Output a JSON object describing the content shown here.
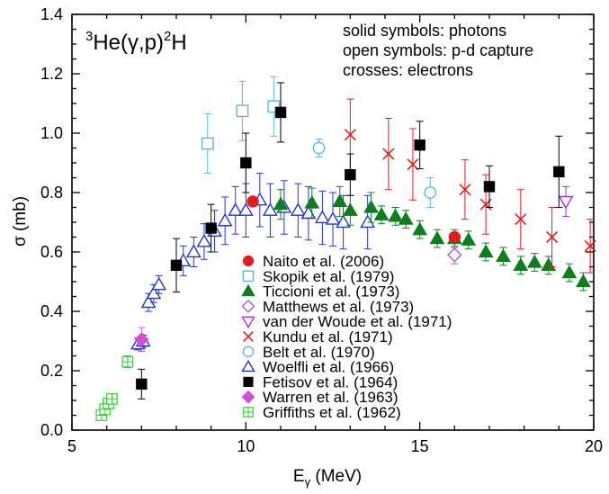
{
  "chart_data": {
    "type": "scatter",
    "title": {
      "pre": "3",
      "main1": "He(γ,p)",
      "sup2": "2",
      "main2": "H"
    },
    "xlabel": {
      "base": "E",
      "sub": "γ",
      "rest": " (MeV)"
    },
    "ylabel": "σ (mb)",
    "xlim": [
      5,
      20
    ],
    "ylim": [
      0.0,
      1.4
    ],
    "xticks": [
      5,
      10,
      15,
      20
    ],
    "xtick_labels": [
      "5",
      "10",
      "15",
      "20"
    ],
    "yticks": [
      0.0,
      0.2,
      0.4,
      0.6,
      0.8,
      1.0,
      1.2,
      1.4
    ],
    "ytick_labels": [
      "0.0",
      "0.2",
      "0.4",
      "0.6",
      "0.8",
      "1.0",
      "1.2",
      "1.4"
    ],
    "annotations": [
      "solid symbols: photons",
      "open symbols: p-d capture",
      "crosses: electrons"
    ],
    "legend_position": "center-bottom",
    "series": [
      {
        "name": "Naito et al. (2006)",
        "marker": "circle-filled",
        "color": "#e41a1c",
        "points": [
          [
            10.2,
            0.77,
            0
          ],
          [
            16.0,
            0.65,
            0
          ]
        ]
      },
      {
        "name": "Skopik et al. (1979)",
        "marker": "square-open",
        "color": "#5bb6e6",
        "points": [
          [
            8.9,
            0.965,
            0.1
          ],
          [
            9.9,
            1.075,
            0.1
          ],
          [
            10.8,
            1.09,
            0.1
          ]
        ]
      },
      {
        "name": "Ticcioni et al. (1973)",
        "marker": "triangle-filled",
        "color": "#0e7d1c",
        "points": [
          [
            11.0,
            0.76,
            0.05
          ],
          [
            11.9,
            0.765,
            0.05
          ],
          [
            12.7,
            0.77,
            0.05
          ],
          [
            13.0,
            0.74,
            0.05
          ],
          [
            13.6,
            0.75,
            0.05
          ],
          [
            13.9,
            0.725,
            0.03
          ],
          [
            14.3,
            0.72,
            0.03
          ],
          [
            14.6,
            0.71,
            0.03
          ],
          [
            15.0,
            0.675,
            0.03
          ],
          [
            15.5,
            0.645,
            0.03
          ],
          [
            16.0,
            0.645,
            0.03
          ],
          [
            16.4,
            0.64,
            0.03
          ],
          [
            16.9,
            0.6,
            0.03
          ],
          [
            17.4,
            0.585,
            0.03
          ],
          [
            17.9,
            0.555,
            0.03
          ],
          [
            18.3,
            0.565,
            0.03
          ],
          [
            18.7,
            0.555,
            0.03
          ],
          [
            19.3,
            0.53,
            0.03
          ],
          [
            19.7,
            0.5,
            0.03
          ]
        ]
      },
      {
        "name": "Matthews et al. (1973)",
        "marker": "diamond-open",
        "color": "#b05ccc",
        "points": [
          [
            16.0,
            0.59,
            0.03
          ]
        ]
      },
      {
        "name": "van der Woude et al. (1971)",
        "marker": "triangle-down-open",
        "color": "#9b32d0",
        "points": [
          [
            19.2,
            0.77,
            0.05
          ]
        ]
      },
      {
        "name": "Kundu et al. (1971)",
        "marker": "cross",
        "color": "#e41a1c",
        "points": [
          [
            13.0,
            0.995,
            0.12
          ],
          [
            14.1,
            0.93,
            0.12
          ],
          [
            14.8,
            0.895,
            0.12
          ],
          [
            16.3,
            0.81,
            0.1
          ],
          [
            16.9,
            0.76,
            0.1
          ],
          [
            17.9,
            0.71,
            0.1
          ],
          [
            18.8,
            0.65,
            0.1
          ],
          [
            19.9,
            0.62,
            0.09
          ]
        ]
      },
      {
        "name": "Belt et al. (1970)",
        "marker": "circle-open",
        "color": "#5bb6e6",
        "points": [
          [
            12.1,
            0.95,
            0.03
          ],
          [
            15.3,
            0.8,
            0.05
          ]
        ]
      },
      {
        "name": "Woelfli et al. (1966)",
        "marker": "triangle-open",
        "color": "#2233dd",
        "points": [
          [
            7.2,
            0.43,
            0.03
          ],
          [
            7.35,
            0.46,
            0.03
          ],
          [
            7.5,
            0.49,
            0.03
          ],
          [
            6.9,
            0.29,
            0.02
          ],
          [
            7.05,
            0.3,
            0.02
          ],
          [
            8.2,
            0.57,
            0.05
          ],
          [
            8.5,
            0.6,
            0.05
          ],
          [
            8.8,
            0.635,
            0.06
          ],
          [
            9.1,
            0.67,
            0.07
          ],
          [
            9.4,
            0.705,
            0.08
          ],
          [
            9.7,
            0.74,
            0.08
          ],
          [
            10.0,
            0.74,
            0.09
          ],
          [
            10.4,
            0.775,
            0.09
          ],
          [
            10.7,
            0.74,
            0.09
          ],
          [
            11.1,
            0.75,
            0.09
          ],
          [
            11.5,
            0.74,
            0.09
          ],
          [
            11.8,
            0.73,
            0.09
          ],
          [
            12.2,
            0.715,
            0.09
          ],
          [
            12.5,
            0.71,
            0.09
          ],
          [
            12.8,
            0.7,
            0.09
          ],
          [
            13.5,
            0.7,
            0.09
          ]
        ]
      },
      {
        "name": "Fetisov et al. (1964)",
        "marker": "square-filled",
        "color": "#000000",
        "points": [
          [
            7.0,
            0.155,
            0.05
          ],
          [
            8.0,
            0.555,
            0.09
          ],
          [
            9.0,
            0.68,
            0.08
          ],
          [
            10.0,
            0.9,
            0.1
          ],
          [
            11.0,
            1.07,
            0.1
          ],
          [
            13.0,
            0.86,
            0.07
          ],
          [
            15.0,
            0.96,
            0.08
          ],
          [
            17.0,
            0.82,
            0.07
          ],
          [
            19.0,
            0.87,
            0.12
          ]
        ]
      },
      {
        "name": "Warren et al. (1963)",
        "marker": "diamond-filled",
        "color": "#d44fd4",
        "points": [
          [
            7.0,
            0.305,
            0.04
          ]
        ]
      },
      {
        "name": "Griffiths et al. (1962)",
        "marker": "square-grid",
        "color": "#33cc33",
        "points": [
          [
            5.85,
            0.05,
            0
          ],
          [
            5.95,
            0.07,
            0
          ],
          [
            6.05,
            0.09,
            0
          ],
          [
            6.15,
            0.105,
            0
          ],
          [
            6.6,
            0.23,
            0.02
          ]
        ]
      }
    ]
  }
}
